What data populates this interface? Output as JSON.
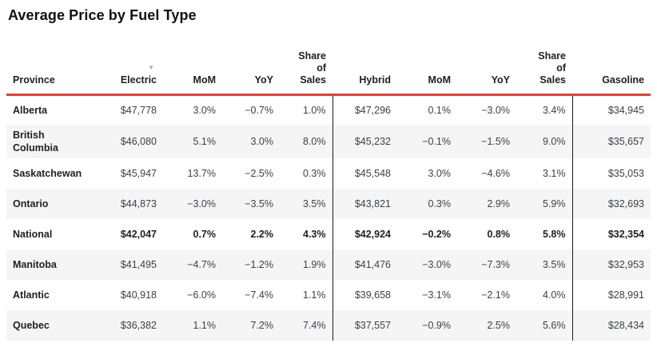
{
  "title": "Average Price by Fuel Type",
  "colors": {
    "accent_red": "#ee3b35",
    "stripe": "#f5f5f5",
    "divider": "#1a1a1a",
    "header_text": "#212121",
    "value_text": "#3d4043",
    "sort_icon": "#a9a9a9"
  },
  "table": {
    "sort_icon": "▼",
    "sorted_column": "Electric",
    "columns": [
      "Province",
      "Electric",
      "MoM",
      "YoY",
      "Share of Sales",
      "Hybrid",
      "MoM",
      "YoY",
      "Share of Sales",
      "Gasoline"
    ],
    "rows": [
      {
        "province": "Alberta",
        "bold": false,
        "values": [
          "$47,778",
          "3.0%",
          "−0.7%",
          "1.0%",
          "$47,296",
          "0.1%",
          "−3.0%",
          "3.4%",
          "$34,945"
        ]
      },
      {
        "province": "British Columbia",
        "bold": false,
        "values": [
          "$46,080",
          "5.1%",
          "3.0%",
          "8.0%",
          "$45,232",
          "−0.1%",
          "−1.5%",
          "9.0%",
          "$35,657"
        ]
      },
      {
        "province": "Saskatchewan",
        "bold": false,
        "values": [
          "$45,947",
          "13.7%",
          "−2.5%",
          "0.3%",
          "$45,548",
          "3.0%",
          "−4.6%",
          "3.1%",
          "$35,053"
        ]
      },
      {
        "province": "Ontario",
        "bold": false,
        "values": [
          "$44,873",
          "−3.0%",
          "−3.5%",
          "3.5%",
          "$43,821",
          "0.3%",
          "2.9%",
          "5.9%",
          "$32,693"
        ]
      },
      {
        "province": "National",
        "bold": true,
        "values": [
          "$42,047",
          "0.7%",
          "2.2%",
          "4.3%",
          "$42,924",
          "−0.2%",
          "0.8%",
          "5.8%",
          "$32,354"
        ]
      },
      {
        "province": "Manitoba",
        "bold": false,
        "values": [
          "$41,495",
          "−4.7%",
          "−1.2%",
          "1.9%",
          "$41,476",
          "−3.0%",
          "−7.3%",
          "3.5%",
          "$32,953"
        ]
      },
      {
        "province": "Atlantic",
        "bold": false,
        "values": [
          "$40,918",
          "−6.0%",
          "−7.4%",
          "1.1%",
          "$39,658",
          "−3.1%",
          "−2.1%",
          "4.0%",
          "$28,991"
        ]
      },
      {
        "province": "Quebec",
        "bold": false,
        "values": [
          "$36,382",
          "1.1%",
          "7.2%",
          "7.4%",
          "$37,557",
          "−0.9%",
          "2.5%",
          "5.6%",
          "$28,434"
        ]
      }
    ]
  }
}
